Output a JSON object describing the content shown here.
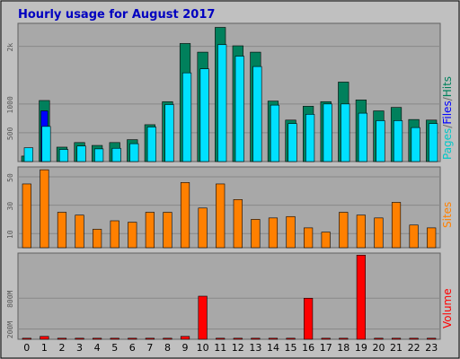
{
  "chart_data": [
    {
      "type": "bar",
      "title": "Hourly usage for August 2017",
      "categories": [
        "0",
        "1",
        "2",
        "3",
        "4",
        "5",
        "6",
        "7",
        "8",
        "9",
        "10",
        "11",
        "12",
        "13",
        "14",
        "15",
        "16",
        "17",
        "18",
        "19",
        "20",
        "21",
        "22",
        "23"
      ],
      "yticks": [
        "500",
        "1000",
        "2k"
      ],
      "series": [
        {
          "name": "Pages",
          "color": "#00805c",
          "values": [
            95,
            1060,
            250,
            330,
            280,
            330,
            380,
            640,
            1040,
            2050,
            1900,
            2330,
            2010,
            1900,
            1050,
            720,
            960,
            1040,
            1380,
            1070,
            880,
            940,
            730,
            720
          ]
        },
        {
          "name": "Files",
          "color": "#0000ff",
          "values": [
            0,
            880,
            0,
            0,
            0,
            0,
            0,
            0,
            0,
            0,
            0,
            0,
            0,
            0,
            0,
            0,
            0,
            0,
            0,
            0,
            0,
            0,
            0,
            0
          ]
        },
        {
          "name": "Hits",
          "color": "#00e0ff",
          "values": [
            240,
            610,
            210,
            270,
            220,
            230,
            310,
            600,
            990,
            1540,
            1610,
            2030,
            1830,
            1650,
            980,
            660,
            820,
            1000,
            1000,
            840,
            710,
            710,
            590,
            660
          ]
        }
      ],
      "side_labels": {
        "pages": "Pages",
        "sep1": "/",
        "files": "Files",
        "sep2": "/",
        "hits": "Hits"
      }
    },
    {
      "type": "bar",
      "yticks": [
        "10",
        "30",
        "50"
      ],
      "series": [
        {
          "name": "Sites",
          "color": "#ff8000",
          "values": [
            45,
            55,
            25,
            23,
            13,
            19,
            18,
            25,
            25,
            46,
            28,
            45,
            34,
            20,
            21,
            22,
            14,
            11,
            25,
            23,
            21,
            32,
            16,
            14
          ]
        }
      ],
      "side_label": "Sites"
    },
    {
      "type": "bar",
      "yticks": [
        "200M",
        "800M"
      ],
      "series": [
        {
          "name": "Volume",
          "color": "#ff0000",
          "values": [
            5,
            14,
            5,
            5,
            5,
            5,
            5,
            5,
            5,
            14,
            210,
            5,
            5,
            5,
            5,
            5,
            200,
            5,
            5,
            410,
            5,
            5,
            5,
            5
          ]
        }
      ],
      "side_label": "Volume"
    }
  ],
  "colors": {
    "background": "#c0c0c0",
    "plot": "#a8a8a8",
    "title": "#0000c0",
    "gridline": "#808080"
  }
}
